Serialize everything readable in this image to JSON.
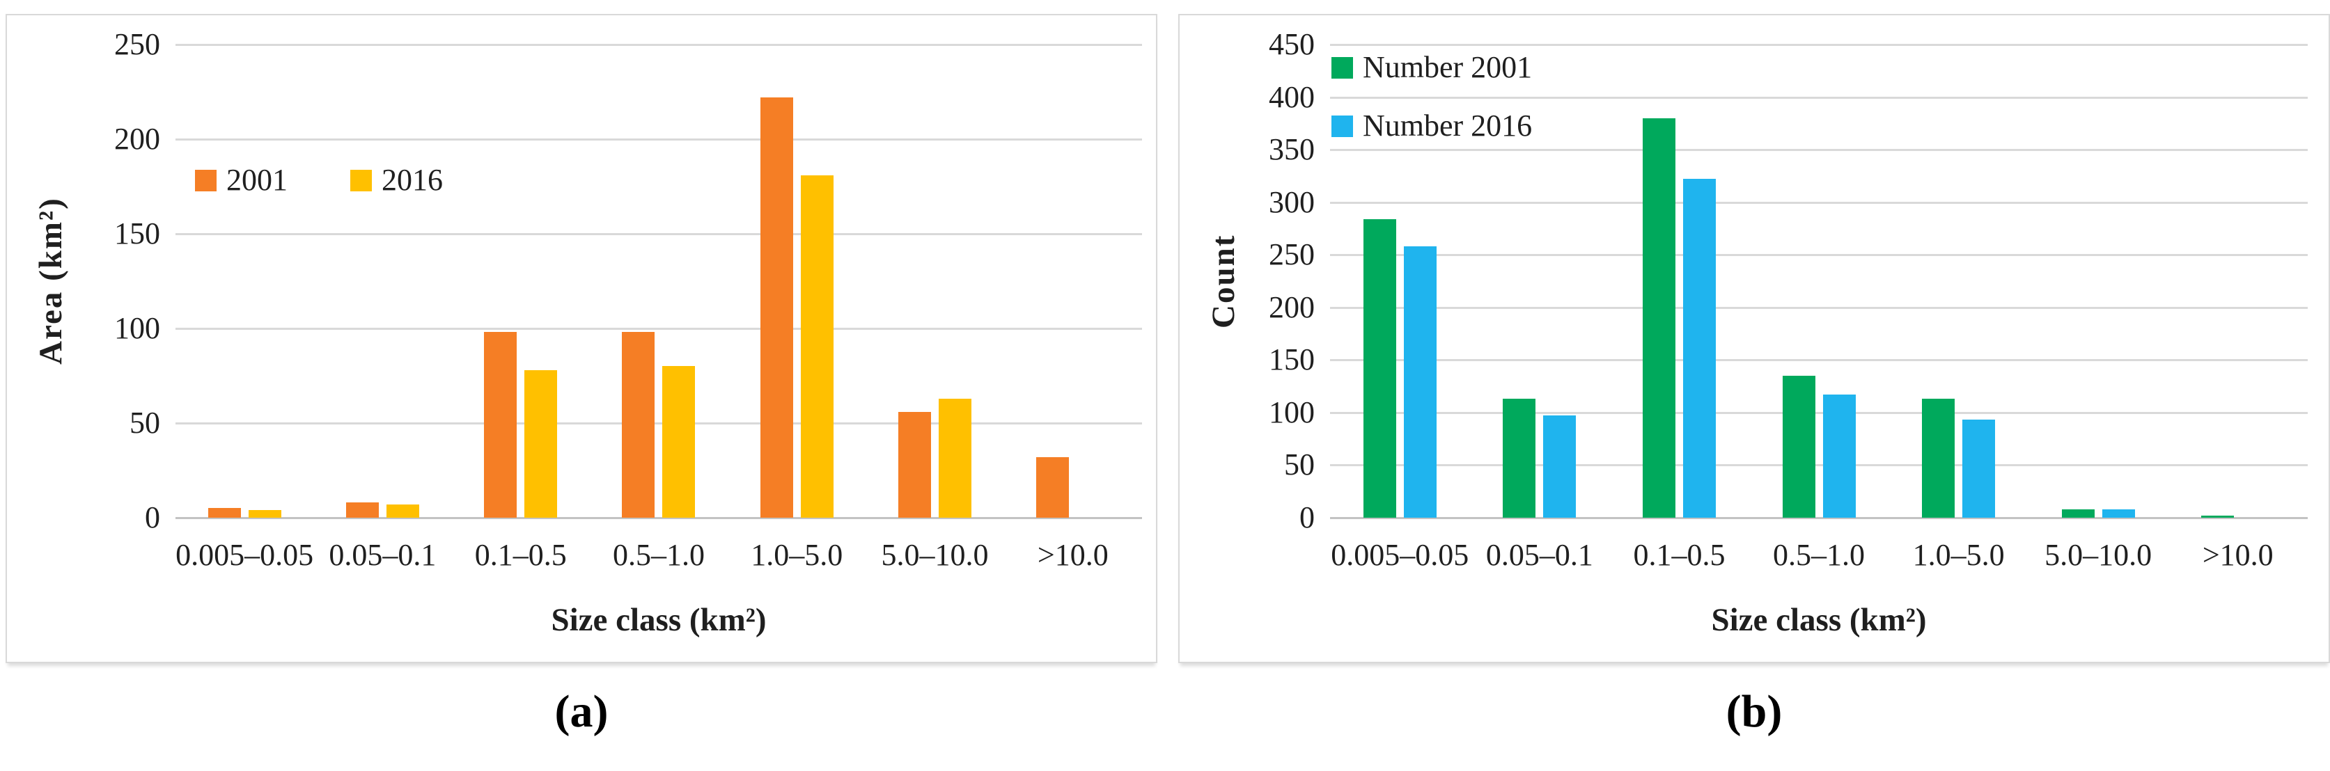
{
  "figure": {
    "captions": {
      "a": "(a)",
      "b": "(b)"
    }
  },
  "style": {
    "gridline_color": "#d9d9d9",
    "axis_line_color": "#c3c3c3",
    "text_color": "#1f1f1f",
    "orange_2001": "#f57e25",
    "yellow_2016": "#ffc000",
    "green_number_2001": "#00a95c",
    "blue_number_2016": "#1fb4ee"
  },
  "chart_data": [
    {
      "type": "bar",
      "panel": "a",
      "title": "",
      "xlabel": "Size class (km²)",
      "ylabel": "Area (km²)",
      "ylim": [
        0,
        250
      ],
      "ytick_step": 50,
      "grid": true,
      "legend_position": "inside-top-left-horizontal",
      "categories": [
        "0.005–0.05",
        "0.05–0.1",
        "0.1–0.5",
        "0.5–1.0",
        "1.0–5.0",
        "5.0–10.0",
        ">10.0"
      ],
      "series": [
        {
          "name": "2001",
          "color": "#f57e25",
          "values": [
            5,
            8,
            98,
            98,
            222,
            56,
            32
          ]
        },
        {
          "name": "2016",
          "color": "#ffc000",
          "values": [
            4,
            7,
            78,
            80,
            181,
            63,
            0
          ]
        }
      ]
    },
    {
      "type": "bar",
      "panel": "b",
      "title": "",
      "xlabel": "Size class (km²)",
      "ylabel": "Count",
      "ylim": [
        0,
        450
      ],
      "ytick_step": 50,
      "grid": true,
      "legend_position": "inside-top-left-vertical",
      "categories": [
        "0.005–0.05",
        "0.05–0.1",
        "0.1–0.5",
        "0.5–1.0",
        "1.0–5.0",
        "5.0–10.0",
        ">10.0"
      ],
      "series": [
        {
          "name": "Number 2001",
          "color": "#00a95c",
          "values": [
            284,
            113,
            380,
            135,
            113,
            8,
            2
          ]
        },
        {
          "name": "Number 2016",
          "color": "#1fb4ee",
          "values": [
            258,
            97,
            322,
            117,
            93,
            8,
            0
          ]
        }
      ]
    }
  ]
}
